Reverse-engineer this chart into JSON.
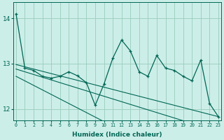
{
  "xlabel": "Humidex (Indice chaleur)",
  "bg_color": "#cceee8",
  "grid_color": "#99ccbb",
  "line_color": "#006655",
  "x_values": [
    0,
    1,
    2,
    3,
    4,
    5,
    6,
    7,
    8,
    9,
    10,
    11,
    12,
    13,
    14,
    15,
    16,
    17,
    18,
    19,
    20,
    21,
    22,
    23
  ],
  "series1": [
    14.1,
    12.9,
    12.85,
    12.72,
    12.68,
    12.72,
    12.82,
    12.73,
    12.58,
    12.08,
    12.55,
    13.12,
    13.52,
    13.28,
    12.82,
    12.72,
    13.18,
    12.9,
    12.85,
    12.72,
    12.62,
    13.08,
    12.12,
    11.83
  ],
  "trend_upper": [
    12.98,
    12.93,
    12.88,
    12.83,
    12.78,
    12.73,
    12.68,
    12.63,
    12.58,
    12.53,
    12.48,
    12.43,
    12.38,
    12.33,
    12.28,
    12.23,
    12.18,
    12.13,
    12.08,
    12.03,
    11.98,
    11.93,
    11.88,
    11.83
  ],
  "trend_mid": [
    12.88,
    12.82,
    12.76,
    12.7,
    12.64,
    12.58,
    12.52,
    12.46,
    12.4,
    12.34,
    12.28,
    12.22,
    12.16,
    12.1,
    12.04,
    11.98,
    11.92,
    11.86,
    11.8,
    11.74,
    11.68,
    11.62,
    11.56,
    11.5
  ],
  "trend_lower": [
    12.72,
    12.62,
    12.52,
    12.42,
    12.32,
    12.22,
    12.12,
    12.02,
    11.92,
    11.82,
    11.72,
    11.62,
    11.52,
    11.42,
    11.32,
    11.22,
    11.12,
    11.02,
    10.92,
    10.82,
    10.72,
    10.62,
    10.52,
    10.42
  ],
  "ylim": [
    11.75,
    14.35
  ],
  "yticks": [
    12,
    13,
    14
  ],
  "xticks": [
    0,
    1,
    2,
    3,
    4,
    5,
    6,
    7,
    8,
    9,
    10,
    11,
    12,
    13,
    14,
    15,
    16,
    17,
    18,
    19,
    20,
    21,
    22,
    23
  ]
}
